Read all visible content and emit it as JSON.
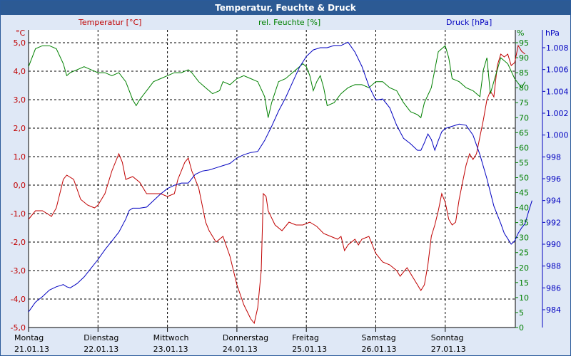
{
  "window": {
    "title": "Temperatur, Feuchte & Druck"
  },
  "colors": {
    "temperature": "#c00000",
    "humidity": "#008000",
    "pressure": "#0000c0",
    "background": "#dfe8f6",
    "titlebar": "#2c5a94"
  },
  "chart_data": {
    "type": "line",
    "title": "Temperatur, Feuchte & Druck",
    "axes": {
      "temperature": {
        "title": "Temperatur [°C]",
        "unit": "°C",
        "range": [
          -5,
          5
        ],
        "ticks": [
          "5,0",
          "4,0",
          "3,0",
          "2,0",
          "1,0",
          "0,0",
          "-1,0",
          "-2,0",
          "-3,0",
          "-4,0",
          "-5,0"
        ]
      },
      "humidity": {
        "title": "rel. Feuchte [%]",
        "unit": "%",
        "range": [
          0,
          95
        ],
        "ticks": [
          "95",
          "90",
          "85",
          "80",
          "75",
          "70",
          "65",
          "60",
          "55",
          "50",
          "45",
          "40",
          "35",
          "30",
          "25",
          "20",
          "15",
          "10",
          "5",
          "0"
        ]
      },
      "pressure": {
        "title": "Druck [hPa]",
        "unit": "hPa",
        "range": [
          983,
          1009
        ],
        "ticks": [
          "1.008",
          "1.006",
          "1.004",
          "1.002",
          "1.000",
          "998",
          "996",
          "994",
          "992",
          "990",
          "988",
          "986",
          "984"
        ]
      }
    },
    "x_axis": {
      "range_days": [
        0,
        7
      ],
      "days": [
        {
          "name": "Montag",
          "date": "21.01.13"
        },
        {
          "name": "Dienstag",
          "date": "22.01.13"
        },
        {
          "name": "Mittwoch",
          "date": "23.01.13"
        },
        {
          "name": "Donnerstag",
          "date": "24.01.13"
        },
        {
          "name": "Freitag",
          "date": "25.01.13"
        },
        {
          "name": "Samstag",
          "date": "26.01.13"
        },
        {
          "name": "Sonntag",
          "date": "27.01.13"
        }
      ]
    },
    "grid": true,
    "series": [
      {
        "name": "Temperatur [°C]",
        "axis": "temperature",
        "points": [
          [
            0.0,
            -1.2
          ],
          [
            0.1,
            -0.9
          ],
          [
            0.2,
            -0.9
          ],
          [
            0.3,
            -1.05
          ],
          [
            0.33,
            -1.1
          ],
          [
            0.4,
            -0.8
          ],
          [
            0.5,
            0.2
          ],
          [
            0.55,
            0.35
          ],
          [
            0.65,
            0.2
          ],
          [
            0.75,
            -0.5
          ],
          [
            0.85,
            -0.7
          ],
          [
            0.95,
            -0.8
          ],
          [
            1.0,
            -0.7
          ],
          [
            1.1,
            -0.3
          ],
          [
            1.2,
            0.5
          ],
          [
            1.3,
            1.1
          ],
          [
            1.35,
            0.8
          ],
          [
            1.4,
            0.2
          ],
          [
            1.5,
            0.3
          ],
          [
            1.6,
            0.1
          ],
          [
            1.7,
            -0.3
          ],
          [
            1.8,
            -0.3
          ],
          [
            1.9,
            -0.3
          ],
          [
            2.0,
            -0.4
          ],
          [
            2.1,
            -0.3
          ],
          [
            2.15,
            0.2
          ],
          [
            2.25,
            0.8
          ],
          [
            2.3,
            0.95
          ],
          [
            2.35,
            0.5
          ],
          [
            2.45,
            -0.1
          ],
          [
            2.55,
            -1.3
          ],
          [
            2.6,
            -1.6
          ],
          [
            2.7,
            -2.0
          ],
          [
            2.8,
            -1.8
          ],
          [
            2.9,
            -2.5
          ],
          [
            3.0,
            -3.5
          ],
          [
            3.1,
            -4.2
          ],
          [
            3.2,
            -4.7
          ],
          [
            3.25,
            -4.85
          ],
          [
            3.3,
            -4.3
          ],
          [
            3.35,
            -3.0
          ],
          [
            3.38,
            -0.3
          ],
          [
            3.42,
            -0.4
          ],
          [
            3.45,
            -0.9
          ],
          [
            3.55,
            -1.4
          ],
          [
            3.65,
            -1.6
          ],
          [
            3.75,
            -1.3
          ],
          [
            3.85,
            -1.4
          ],
          [
            3.95,
            -1.4
          ],
          [
            4.05,
            -1.3
          ],
          [
            4.15,
            -1.45
          ],
          [
            4.25,
            -1.7
          ],
          [
            4.35,
            -1.8
          ],
          [
            4.45,
            -1.9
          ],
          [
            4.5,
            -1.8
          ],
          [
            4.55,
            -2.3
          ],
          [
            4.6,
            -2.1
          ],
          [
            4.7,
            -1.9
          ],
          [
            4.75,
            -2.1
          ],
          [
            4.8,
            -1.9
          ],
          [
            4.9,
            -1.8
          ],
          [
            5.0,
            -2.4
          ],
          [
            5.1,
            -2.7
          ],
          [
            5.2,
            -2.8
          ],
          [
            5.3,
            -3.0
          ],
          [
            5.35,
            -3.2
          ],
          [
            5.45,
            -2.9
          ],
          [
            5.55,
            -3.3
          ],
          [
            5.65,
            -3.7
          ],
          [
            5.7,
            -3.5
          ],
          [
            5.75,
            -2.8
          ],
          [
            5.8,
            -1.8
          ],
          [
            5.85,
            -1.4
          ],
          [
            5.9,
            -0.9
          ],
          [
            5.95,
            -0.3
          ],
          [
            6.0,
            -0.6
          ],
          [
            6.05,
            -1.2
          ],
          [
            6.1,
            -1.4
          ],
          [
            6.15,
            -1.3
          ],
          [
            6.2,
            -0.5
          ],
          [
            6.25,
            0.1
          ],
          [
            6.3,
            0.7
          ],
          [
            6.35,
            1.1
          ],
          [
            6.4,
            0.9
          ],
          [
            6.45,
            1.1
          ],
          [
            6.5,
            1.7
          ],
          [
            6.55,
            2.3
          ],
          [
            6.6,
            3.0
          ],
          [
            6.65,
            3.3
          ],
          [
            6.7,
            3.1
          ],
          [
            6.75,
            4.2
          ],
          [
            6.8,
            4.6
          ],
          [
            6.85,
            4.5
          ],
          [
            6.9,
            4.6
          ],
          [
            6.95,
            4.2
          ],
          [
            7.0,
            4.3
          ],
          [
            7.05,
            4.9
          ],
          [
            7.1,
            4.7
          ],
          [
            7.15,
            4.6
          ]
        ]
      },
      {
        "name": "rel. Feuchte [%]",
        "axis": "humidity",
        "points": [
          [
            0.0,
            87
          ],
          [
            0.1,
            93
          ],
          [
            0.2,
            94
          ],
          [
            0.3,
            94
          ],
          [
            0.4,
            93
          ],
          [
            0.5,
            88
          ],
          [
            0.55,
            84
          ],
          [
            0.6,
            85
          ],
          [
            0.7,
            86
          ],
          [
            0.8,
            87
          ],
          [
            0.9,
            86
          ],
          [
            1.0,
            85
          ],
          [
            1.1,
            85
          ],
          [
            1.2,
            84
          ],
          [
            1.3,
            85
          ],
          [
            1.4,
            82
          ],
          [
            1.5,
            76
          ],
          [
            1.55,
            74
          ],
          [
            1.6,
            76
          ],
          [
            1.7,
            79
          ],
          [
            1.8,
            82
          ],
          [
            1.9,
            83
          ],
          [
            2.0,
            84
          ],
          [
            2.1,
            85
          ],
          [
            2.2,
            85
          ],
          [
            2.3,
            86
          ],
          [
            2.35,
            85
          ],
          [
            2.45,
            82
          ],
          [
            2.55,
            80
          ],
          [
            2.65,
            78
          ],
          [
            2.75,
            79
          ],
          [
            2.8,
            82
          ],
          [
            2.9,
            81
          ],
          [
            3.0,
            83
          ],
          [
            3.1,
            84
          ],
          [
            3.2,
            83
          ],
          [
            3.3,
            82
          ],
          [
            3.4,
            77
          ],
          [
            3.45,
            70
          ],
          [
            3.5,
            75
          ],
          [
            3.6,
            82
          ],
          [
            3.7,
            83
          ],
          [
            3.8,
            85
          ],
          [
            3.9,
            87
          ],
          [
            3.95,
            88
          ],
          [
            4.0,
            87
          ],
          [
            4.05,
            84
          ],
          [
            4.1,
            79
          ],
          [
            4.15,
            82
          ],
          [
            4.2,
            84
          ],
          [
            4.25,
            80
          ],
          [
            4.3,
            74
          ],
          [
            4.4,
            75
          ],
          [
            4.5,
            78
          ],
          [
            4.6,
            80
          ],
          [
            4.7,
            81
          ],
          [
            4.8,
            81
          ],
          [
            4.9,
            80
          ],
          [
            5.0,
            82
          ],
          [
            5.1,
            82
          ],
          [
            5.2,
            80
          ],
          [
            5.3,
            79
          ],
          [
            5.4,
            75
          ],
          [
            5.5,
            72
          ],
          [
            5.6,
            71
          ],
          [
            5.65,
            70
          ],
          [
            5.7,
            75
          ],
          [
            5.8,
            80
          ],
          [
            5.9,
            92
          ],
          [
            6.0,
            94
          ],
          [
            6.05,
            90
          ],
          [
            6.1,
            83
          ],
          [
            6.2,
            82
          ],
          [
            6.3,
            80
          ],
          [
            6.4,
            79
          ],
          [
            6.5,
            77
          ],
          [
            6.55,
            86
          ],
          [
            6.6,
            90
          ],
          [
            6.65,
            78
          ],
          [
            6.7,
            82
          ],
          [
            6.8,
            90
          ],
          [
            6.9,
            88
          ],
          [
            7.0,
            83
          ],
          [
            7.1,
            80
          ],
          [
            7.15,
            82
          ]
        ]
      },
      {
        "name": "Druck [hPa]",
        "axis": "pressure",
        "points": [
          [
            0.0,
            983.8
          ],
          [
            0.1,
            984.7
          ],
          [
            0.2,
            985.2
          ],
          [
            0.3,
            985.8
          ],
          [
            0.4,
            986.1
          ],
          [
            0.5,
            986.3
          ],
          [
            0.55,
            986.1
          ],
          [
            0.6,
            986.0
          ],
          [
            0.7,
            986.4
          ],
          [
            0.8,
            987.0
          ],
          [
            0.9,
            987.8
          ],
          [
            1.0,
            988.6
          ],
          [
            1.1,
            989.5
          ],
          [
            1.2,
            990.3
          ],
          [
            1.3,
            991.1
          ],
          [
            1.4,
            992.3
          ],
          [
            1.45,
            993.1
          ],
          [
            1.5,
            993.3
          ],
          [
            1.6,
            993.3
          ],
          [
            1.7,
            993.4
          ],
          [
            1.8,
            994.0
          ],
          [
            1.9,
            994.6
          ],
          [
            2.0,
            995.1
          ],
          [
            2.1,
            995.4
          ],
          [
            2.2,
            995.6
          ],
          [
            2.3,
            995.6
          ],
          [
            2.4,
            996.4
          ],
          [
            2.5,
            996.7
          ],
          [
            2.6,
            996.8
          ],
          [
            2.7,
            997.0
          ],
          [
            2.8,
            997.2
          ],
          [
            2.9,
            997.4
          ],
          [
            3.0,
            997.9
          ],
          [
            3.1,
            998.2
          ],
          [
            3.2,
            998.4
          ],
          [
            3.3,
            998.5
          ],
          [
            3.4,
            999.5
          ],
          [
            3.5,
            1000.8
          ],
          [
            3.6,
            1002.2
          ],
          [
            3.7,
            1003.4
          ],
          [
            3.8,
            1004.8
          ],
          [
            3.9,
            1006.2
          ],
          [
            4.0,
            1007.2
          ],
          [
            4.1,
            1007.8
          ],
          [
            4.2,
            1008.0
          ],
          [
            4.3,
            1008.0
          ],
          [
            4.4,
            1008.2
          ],
          [
            4.5,
            1008.2
          ],
          [
            4.6,
            1008.5
          ],
          [
            4.7,
            1007.6
          ],
          [
            4.8,
            1006.3
          ],
          [
            4.9,
            1004.5
          ],
          [
            5.0,
            1003.2
          ],
          [
            5.1,
            1003.3
          ],
          [
            5.2,
            1002.5
          ],
          [
            5.3,
            1000.9
          ],
          [
            5.4,
            999.7
          ],
          [
            5.5,
            999.2
          ],
          [
            5.6,
            998.6
          ],
          [
            5.65,
            998.6
          ],
          [
            5.7,
            999.3
          ],
          [
            5.75,
            1000.1
          ],
          [
            5.8,
            999.6
          ],
          [
            5.85,
            998.6
          ],
          [
            5.9,
            999.5
          ],
          [
            5.95,
            1000.3
          ],
          [
            6.0,
            1000.6
          ],
          [
            6.1,
            1000.8
          ],
          [
            6.2,
            1001.0
          ],
          [
            6.3,
            1000.9
          ],
          [
            6.4,
            1000.0
          ],
          [
            6.5,
            998.2
          ],
          [
            6.6,
            996.0
          ],
          [
            6.7,
            993.5
          ],
          [
            6.8,
            991.9
          ],
          [
            6.85,
            991.0
          ],
          [
            6.9,
            990.5
          ],
          [
            6.95,
            990.0
          ],
          [
            7.0,
            990.3
          ],
          [
            7.05,
            991.0
          ],
          [
            7.1,
            991.5
          ],
          [
            7.15,
            991.9
          ],
          [
            7.2,
            993.0
          ],
          [
            7.25,
            994.0
          ]
        ]
      }
    ]
  }
}
